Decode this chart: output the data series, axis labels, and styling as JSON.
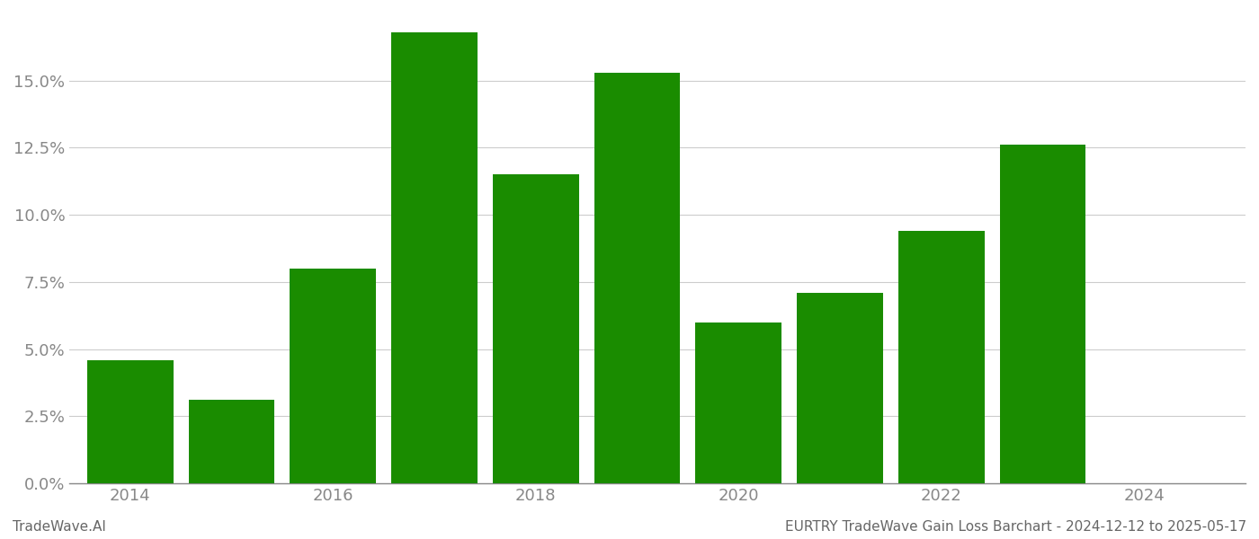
{
  "years": [
    2014,
    2015,
    2016,
    2017,
    2018,
    2019,
    2020,
    2021,
    2022,
    2023
  ],
  "values": [
    0.046,
    0.031,
    0.08,
    0.168,
    0.115,
    0.153,
    0.06,
    0.071,
    0.094,
    0.126
  ],
  "bar_color": "#1a8c00",
  "background_color": "#ffffff",
  "grid_color": "#cccccc",
  "axis_color": "#888888",
  "tick_color": "#888888",
  "ylabel_ticks": [
    0.0,
    0.025,
    0.05,
    0.075,
    0.1,
    0.125,
    0.15
  ],
  "ylim": [
    0.0,
    0.175
  ],
  "xlim": [
    2013.4,
    2025.0
  ],
  "xticks": [
    2014,
    2016,
    2018,
    2020,
    2022,
    2024
  ],
  "footer_left": "TradeWave.AI",
  "footer_right": "EURTRY TradeWave Gain Loss Barchart - 2024-12-12 to 2025-05-17",
  "bar_width": 0.85
}
